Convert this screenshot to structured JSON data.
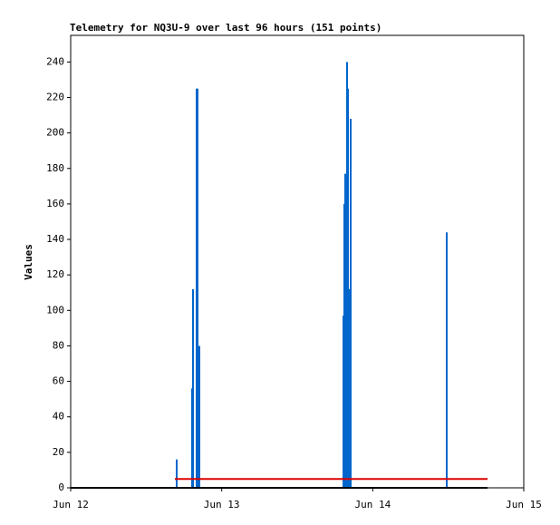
{
  "chart_data": {
    "type": "line",
    "title": "Telemetry for NQ3U-9 over last 96 hours (151 points)",
    "y_label": "Values",
    "xlim": [
      12,
      15
    ],
    "xticks": [
      {
        "value": 12,
        "label": "Jun 12"
      },
      {
        "value": 13,
        "label": "Jun 13"
      },
      {
        "value": 14,
        "label": "Jun 14"
      },
      {
        "value": 15,
        "label": "Jun 15"
      }
    ],
    "ylim": [
      0,
      255
    ],
    "yticks": [
      0,
      20,
      40,
      60,
      80,
      100,
      120,
      140,
      160,
      180,
      200,
      220,
      240
    ],
    "grid": false,
    "series": [
      {
        "type": "impulse",
        "color": "#0066cc",
        "x": [
          12.702,
          12.804,
          12.81,
          12.834,
          12.84,
          12.852,
          13.806,
          13.812,
          13.818,
          13.824,
          13.83,
          13.836,
          13.848,
          13.854,
          14.49
        ],
        "values": [
          16,
          56,
          112,
          225,
          225,
          80,
          97,
          160,
          177,
          177,
          240,
          225,
          112,
          208,
          144
        ]
      },
      {
        "type": "line",
        "color": "#dd0000",
        "x": [
          12.69,
          14.76
        ],
        "values": [
          5,
          5
        ]
      },
      {
        "type": "line",
        "color": "#000000",
        "x": [
          12,
          14.76
        ],
        "values": [
          0,
          0
        ]
      }
    ]
  }
}
